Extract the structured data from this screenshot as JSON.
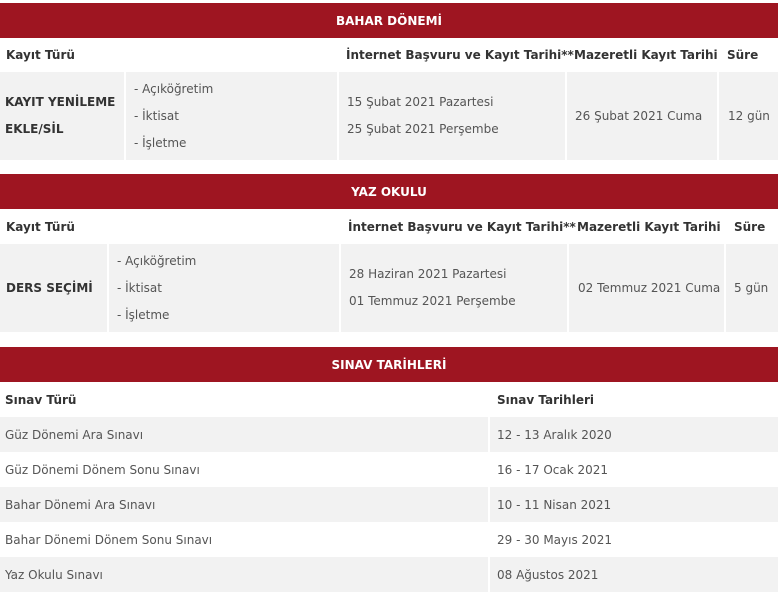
{
  "colors": {
    "header": "#9e1521",
    "row_alt": "#f2f2f2"
  },
  "bahar": {
    "title": "BAHAR DÖNEMİ",
    "headers": [
      "Kayıt Türü",
      "İnternet Başvuru ve Kayıt Tarihi**",
      "Mazeretli Kayıt Tarihi",
      "Süre"
    ],
    "type_lines": [
      "KAYIT YENİLEME",
      "EKLE/SİL"
    ],
    "programs": [
      "- Açıköğretim",
      "- İktisat",
      "- İşletme"
    ],
    "dates": [
      "15 Şubat 2021 Pazartesi",
      "25 Şubat 2021 Perşembe"
    ],
    "late": "26 Şubat 2021 Cuma",
    "duration": "12 gün"
  },
  "yaz": {
    "title": "YAZ OKULU",
    "headers": [
      "Kayıt Türü",
      "İnternet Başvuru ve Kayıt Tarihi**",
      "Mazeretli Kayıt Tarihi",
      "Süre"
    ],
    "type": "DERS SEÇİMİ",
    "programs": [
      "- Açıköğretim",
      "- İktisat",
      "- İşletme"
    ],
    "dates": [
      "28 Haziran 2021 Pazartesi",
      "01 Temmuz 2021 Perşembe"
    ],
    "late": "02 Temmuz 2021 Cuma",
    "duration": "5 gün"
  },
  "sinav": {
    "title": "SINAV TARİHLERİ",
    "headers": [
      "Sınav Türü",
      "Sınav Tarihleri"
    ],
    "rows": [
      [
        "Güz Dönemi Ara Sınavı",
        "12 - 13 Aralık 2020"
      ],
      [
        "Güz Dönemi Dönem Sonu Sınavı",
        "16 - 17 Ocak 2021"
      ],
      [
        "Bahar Dönemi Ara Sınavı",
        "10 - 11 Nisan 2021"
      ],
      [
        "Bahar Dönemi Dönem Sonu Sınavı",
        "29 - 30 Mayıs 2021"
      ],
      [
        "Yaz Okulu Sınavı",
        "08 Ağustos 2021"
      ]
    ]
  }
}
